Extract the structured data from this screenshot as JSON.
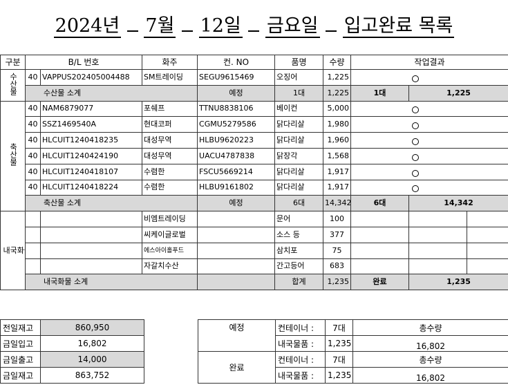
{
  "title": {
    "year": "2024년",
    "month": "7월",
    "day": "12일",
    "weekday": "금요일",
    "subject": "입고완료 목록"
  },
  "headers": [
    "구분",
    "B/L 번호",
    "화주",
    "컨. NO",
    "품명",
    "수량",
    "작업결과"
  ],
  "groups": {
    "seafood": "수산물",
    "livestock": "축산물",
    "domestic": "내국화물"
  },
  "seafood_rows": [
    {
      "ft": "40",
      "bl": "VAPPUS202405004488",
      "owner": "SM트레이딩",
      "cont": "SEGU9615469",
      "item": "오징어",
      "qty": "1,225",
      "mark": "○"
    }
  ],
  "seafood_subtotal": {
    "label": "수산물 소계",
    "planned": "예정",
    "planned_count": "1대",
    "qty": "1,225",
    "done_count": "1대",
    "done_qty": "1,225"
  },
  "livestock_rows": [
    {
      "ft": "40",
      "bl": "NAM6879077",
      "owner": "포쉐프",
      "cont": "TTNU8838106",
      "item": "베이컨",
      "qty": "5,000",
      "mark": "○"
    },
    {
      "ft": "40",
      "bl": "SSZ1469540A",
      "owner": "현대코퍼",
      "cont": "CGMU5279586",
      "item": "닭다리살",
      "qty": "1,980",
      "mark": "○"
    },
    {
      "ft": "40",
      "bl": "HLCUIT1240418235",
      "owner": "대성무역",
      "cont": "HLBU9620223",
      "item": "닭다리살",
      "qty": "1,960",
      "mark": "○"
    },
    {
      "ft": "40",
      "bl": "HLCUIT1240424190",
      "owner": "대성무역",
      "cont": "UACU4787838",
      "item": "닭장각",
      "qty": "1,568",
      "mark": "○"
    },
    {
      "ft": "40",
      "bl": "HLCUIT1240418107",
      "owner": "수렴한",
      "cont": "FSCU5669214",
      "item": "닭다리살",
      "qty": "1,917",
      "mark": "○"
    },
    {
      "ft": "40",
      "bl": "HLCUIT1240418224",
      "owner": "수렴한",
      "cont": "HLBU9161802",
      "item": "닭다리살",
      "qty": "1,917",
      "mark": "○"
    }
  ],
  "livestock_subtotal": {
    "label": "축산물 소계",
    "planned": "예정",
    "planned_count": "6대",
    "qty": "14,342",
    "done_count": "6대",
    "done_qty": "14,342"
  },
  "domestic_rows": [
    {
      "owner": "비엠트레이딩",
      "item": "문어",
      "qty": "100"
    },
    {
      "owner": "씨케이글로벌",
      "item": "소스 등",
      "qty": "377"
    },
    {
      "owner": "에스아이홀푸드",
      "item": "삼치포",
      "qty": "75"
    },
    {
      "owner": "자갈치수산",
      "item": "간고등어",
      "qty": "683"
    }
  ],
  "domestic_subtotal": {
    "label": "내국화물 소계",
    "sum_label": "합계",
    "qty": "1,235",
    "done_label": "완료",
    "done_qty": "1,235"
  },
  "inventory": [
    {
      "label": "전일재고",
      "value": "860,950",
      "shaded": true
    },
    {
      "label": "금일입고",
      "value": "16,802",
      "shaded": false
    },
    {
      "label": "금일출고",
      "value": "14,000",
      "shaded": true
    },
    {
      "label": "금일재고",
      "value": "863,752",
      "shaded": false
    }
  ],
  "summary": {
    "planned_label": "예정",
    "done_label": "완료",
    "container_label": "컨테이너 :",
    "domestic_label": "내국물품 :",
    "planned_containers": "7대",
    "planned_domestic": "1,235",
    "done_containers": "7대",
    "done_domestic": "1,235",
    "total_label": "총수량",
    "planned_total": "16,802",
    "done_total": "16,802"
  }
}
